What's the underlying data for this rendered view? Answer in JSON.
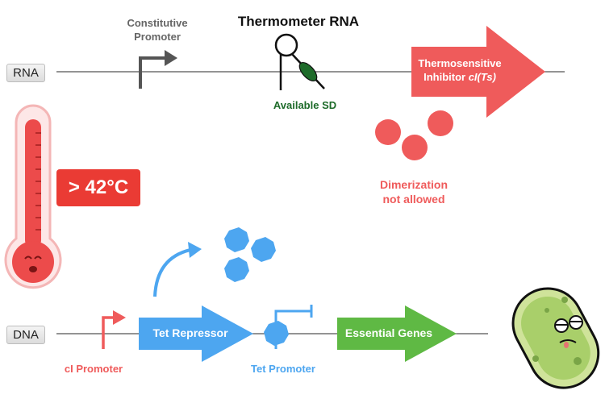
{
  "tracks": {
    "rna": "RNA",
    "dna": "DNA"
  },
  "rna_row": {
    "title": "Thermometer RNA",
    "constitutive_promoter": [
      "Constitutive",
      "Promoter"
    ],
    "available_sd": "Available SD",
    "inhibitor": {
      "line1": "Thermosensitive",
      "line2_prefix": "Inhibitor ",
      "line2_italic": "cI(Ts)"
    },
    "dimerization": [
      "Dimerization",
      "not allowed"
    ]
  },
  "temperature_badge": "> 42°C",
  "dna_row": {
    "ci_promoter": "cI Promoter",
    "tet_repressor": "Tet Repressor",
    "tet_promoter": "Tet Promoter",
    "essential_genes": "Essential Genes"
  },
  "colors": {
    "red": "#ef5b5b",
    "blue": "#4da6f0",
    "green": "#5fb944",
    "dark_green": "#1e6b2a",
    "grey": "#555555"
  }
}
